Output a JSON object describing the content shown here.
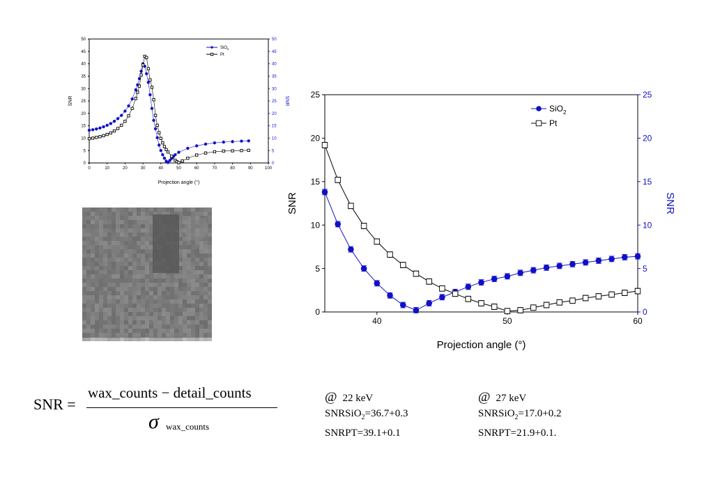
{
  "colors": {
    "sio2": "#1010c8",
    "pt": "#000000",
    "axis_right": "#1010c8",
    "image_bg": "#7a7a7a",
    "image_dark": "#5c5c5c"
  },
  "chart_data": [
    {
      "type": "scatter",
      "xlabel": "Projection angle (°)",
      "ylabel": "SNR",
      "ylabel_right": "SNR",
      "xlim": [
        0,
        100
      ],
      "ylim": [
        0,
        50
      ],
      "xticks": [
        0,
        10,
        20,
        30,
        40,
        50,
        60,
        70,
        80,
        90,
        100
      ],
      "yticks": [
        0,
        5,
        10,
        15,
        20,
        25,
        30,
        35,
        40,
        45,
        50
      ],
      "legend_position": "top-right",
      "series": [
        {
          "name": "SiO2",
          "marker": "filled-circle",
          "x": [
            0,
            2,
            4,
            6,
            8,
            10,
            12,
            14,
            16,
            18,
            20,
            22,
            24,
            26,
            27,
            28,
            29,
            30,
            31,
            32,
            33,
            34,
            35,
            36,
            37,
            38,
            39,
            40,
            41,
            42,
            43,
            44,
            45,
            46,
            47,
            48,
            50,
            55,
            60,
            65,
            70,
            75,
            80,
            85,
            89
          ],
          "y": [
            13.2,
            13.4,
            13.7,
            14.1,
            14.6,
            15.2,
            15.9,
            16.8,
            17.9,
            19.2,
            20.9,
            23.0,
            25.8,
            29.5,
            31.5,
            34.0,
            37.0,
            40.0,
            39.0,
            36.0,
            32.5,
            27.5,
            22.0,
            17.2,
            13.8,
            10.2,
            7.2,
            5.0,
            3.3,
            1.9,
            0.7,
            0.2,
            1.0,
            1.8,
            2.6,
            3.3,
            4.3,
            5.9,
            6.9,
            7.6,
            8.1,
            8.4,
            8.6,
            8.8,
            8.9
          ]
        },
        {
          "name": "Pt",
          "marker": "open-square",
          "x": [
            0,
            2,
            4,
            6,
            8,
            10,
            12,
            14,
            16,
            18,
            20,
            22,
            24,
            26,
            27,
            28,
            29,
            30,
            31,
            32,
            33,
            34,
            35,
            36,
            37,
            38,
            39,
            40,
            41,
            42,
            43,
            44,
            46,
            48,
            49,
            50,
            52,
            55,
            60,
            65,
            70,
            75,
            80,
            85,
            89
          ],
          "y": [
            9.8,
            10.0,
            10.3,
            10.6,
            11.0,
            11.5,
            12.1,
            12.9,
            13.9,
            15.2,
            16.8,
            19.0,
            22.0,
            26.0,
            28.5,
            31.0,
            35.5,
            39.5,
            43.0,
            42.5,
            38.0,
            33.5,
            30.5,
            25.5,
            19.2,
            15.2,
            12.2,
            9.9,
            8.1,
            6.6,
            5.4,
            4.4,
            2.7,
            1.1,
            0.5,
            0.1,
            0.8,
            1.9,
            3.2,
            4.0,
            4.5,
            4.8,
            4.9,
            5.0,
            5.1
          ]
        }
      ]
    },
    {
      "type": "line",
      "xlabel": "Projection angle (°)",
      "ylabel": "SNR",
      "ylabel_right": "SNR",
      "xlim": [
        36,
        60
      ],
      "ylim": [
        0,
        25
      ],
      "xticks": [
        40,
        50,
        60
      ],
      "yticks": [
        0,
        5,
        10,
        15,
        20,
        25
      ],
      "legend_position": "top-right",
      "series": [
        {
          "name": "SiO2",
          "marker": "filled-circle",
          "x": [
            36,
            37,
            38,
            39,
            40,
            41,
            42,
            43,
            44,
            45,
            46,
            47,
            48,
            49,
            50,
            51,
            52,
            53,
            54,
            55,
            56,
            57,
            58,
            59,
            60
          ],
          "y": [
            13.8,
            10.1,
            7.2,
            5.0,
            3.3,
            1.9,
            0.8,
            0.2,
            1.0,
            1.7,
            2.3,
            2.9,
            3.4,
            3.8,
            4.1,
            4.5,
            4.8,
            5.1,
            5.3,
            5.5,
            5.7,
            5.9,
            6.1,
            6.3,
            6.4
          ]
        },
        {
          "name": "Pt",
          "marker": "open-square",
          "x": [
            36,
            37,
            38,
            39,
            40,
            41,
            42,
            43,
            44,
            45,
            46,
            47,
            48,
            49,
            50,
            51,
            52,
            53,
            54,
            55,
            56,
            57,
            58,
            59,
            60
          ],
          "y": [
            19.2,
            15.2,
            12.2,
            9.9,
            8.1,
            6.6,
            5.4,
            4.4,
            3.5,
            2.7,
            2.1,
            1.5,
            1.0,
            0.6,
            0.1,
            0.2,
            0.5,
            0.8,
            1.1,
            1.3,
            1.6,
            1.8,
            2.0,
            2.2,
            2.4
          ]
        }
      ]
    }
  ],
  "legend": {
    "sio2_main": "SiO",
    "sio2_sub": "2",
    "pt": "Pt"
  },
  "formula": {
    "lhs": "SNR =",
    "numerator": "wax_counts − detail_counts",
    "sigma": "σ",
    "sigma_sub": "wax_counts"
  },
  "results": [
    {
      "at": "@",
      "energy": "22 keV",
      "sio2_prefix": "SNRSiO",
      "sio2_sub": "2",
      "sio2_value": "=36.7+0.3",
      "pt": "SNRPT=39.1+0.1"
    },
    {
      "at": "@",
      "energy": "27 keV",
      "sio2_prefix": "SNRSiO",
      "sio2_sub": "2",
      "sio2_value": "=17.0+0.2",
      "pt": "SNRPT=21.9+0.1."
    }
  ]
}
